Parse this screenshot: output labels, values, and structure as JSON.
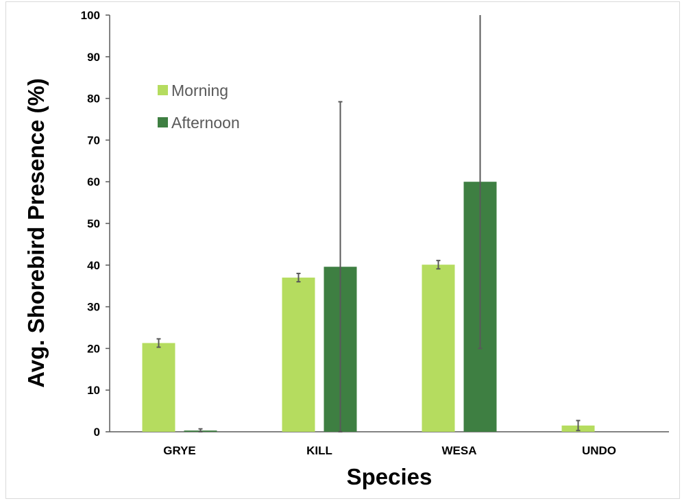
{
  "chart_data": {
    "type": "bar",
    "title": "",
    "xlabel": "Species",
    "ylabel": "Avg. Shorebird Presence (%)",
    "ylim": [
      0,
      100
    ],
    "yticks": [
      0,
      10,
      20,
      30,
      40,
      50,
      60,
      70,
      80,
      90,
      100
    ],
    "grid": false,
    "legend_position": "upper-left",
    "categories": [
      "GRYE",
      "KILL",
      "WESA",
      "UNDO"
    ],
    "series": [
      {
        "name": "Morning",
        "color": "#b5dc5f",
        "values": [
          21.3,
          37.0,
          40.1,
          1.5
        ],
        "error": [
          1.0,
          1.0,
          1.0,
          1.2
        ]
      },
      {
        "name": "Afternoon",
        "color": "#3e7f42",
        "values": [
          0.3,
          39.6,
          60.0,
          0
        ],
        "error": [
          0.4,
          39.6,
          40.0,
          0
        ]
      }
    ]
  }
}
